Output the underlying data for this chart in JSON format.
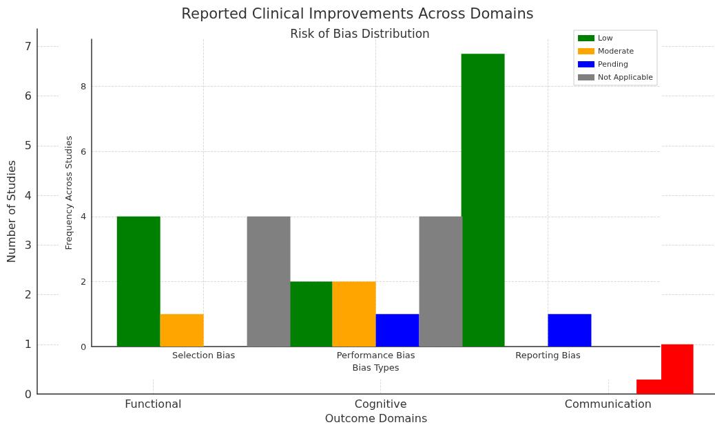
{
  "chart_data": [
    {
      "type": "bar",
      "title": "Reported Clinical Improvements Across Domains",
      "xlabel": "Outcome Domains",
      "ylabel": "Number of Studies",
      "categories": [
        "Functional",
        "Cognitive",
        "Communication"
      ],
      "series": [
        {
          "color": "#008000",
          "values": [
            null,
            null,
            null
          ]
        },
        {
          "color": "#ffa500",
          "values": [
            null,
            null,
            null
          ]
        },
        {
          "color": "#ff0000",
          "values": [
            null,
            null,
            1
          ]
        }
      ],
      "ylim": [
        0,
        7.35
      ],
      "yticks": [
        0,
        1,
        2,
        3,
        4,
        5,
        6,
        7
      ],
      "grid": true
    },
    {
      "type": "bar",
      "title": "Risk of Bias Distribution",
      "xlabel": "Bias Types",
      "ylabel": "Frequency Across Studies",
      "categories": [
        "Selection Bias",
        "Performance Bias",
        "Reporting Bias"
      ],
      "series": [
        {
          "name": "Low",
          "color": "#008000",
          "values": [
            4,
            2,
            9
          ]
        },
        {
          "name": "Moderate",
          "color": "#ffa500",
          "values": [
            1,
            2,
            0
          ]
        },
        {
          "name": "Pending",
          "color": "#0000ff",
          "values": [
            0,
            1,
            1
          ]
        },
        {
          "name": "Not Applicable",
          "color": "#808080",
          "values": [
            4,
            4,
            0
          ]
        }
      ],
      "ylim": [
        0,
        9.45
      ],
      "yticks": [
        0,
        2,
        4,
        6,
        8
      ],
      "grid": true,
      "legend": "top right"
    }
  ]
}
